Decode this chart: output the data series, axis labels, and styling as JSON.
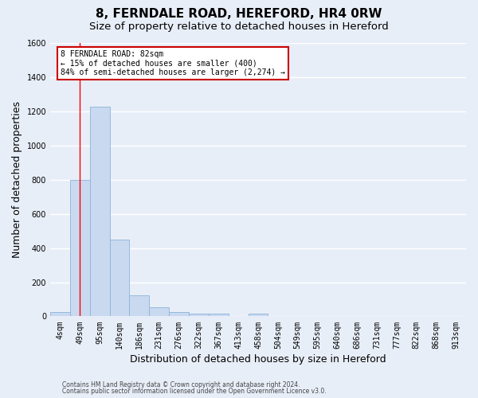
{
  "title1": "8, FERNDALE ROAD, HEREFORD, HR4 0RW",
  "title2": "Size of property relative to detached houses in Hereford",
  "xlabel": "Distribution of detached houses by size in Hereford",
  "ylabel": "Number of detached properties",
  "bar_labels": [
    "4sqm",
    "49sqm",
    "95sqm",
    "140sqm",
    "186sqm",
    "231sqm",
    "276sqm",
    "322sqm",
    "367sqm",
    "413sqm",
    "458sqm",
    "504sqm",
    "549sqm",
    "595sqm",
    "640sqm",
    "686sqm",
    "731sqm",
    "777sqm",
    "822sqm",
    "868sqm",
    "913sqm"
  ],
  "bar_values": [
    25,
    800,
    1225,
    450,
    125,
    55,
    25,
    15,
    15,
    0,
    15,
    0,
    0,
    0,
    0,
    0,
    0,
    0,
    0,
    0,
    0
  ],
  "bar_color": "#c9d9f0",
  "bar_edge_color": "#8ab4d8",
  "background_color": "#e8eef8",
  "grid_color": "#ffffff",
  "red_line_x": 1.0,
  "annotation_text": "8 FERNDALE ROAD: 82sqm\n← 15% of detached houses are smaller (400)\n84% of semi-detached houses are larger (2,274) →",
  "annotation_box_color": "#ffffff",
  "annotation_box_edge_color": "#cc0000",
  "ylim": [
    0,
    1600
  ],
  "yticks": [
    0,
    200,
    400,
    600,
    800,
    1000,
    1200,
    1400,
    1600
  ],
  "footer1": "Contains HM Land Registry data © Crown copyright and database right 2024.",
  "footer2": "Contains public sector information licensed under the Open Government Licence v3.0.",
  "title_fontsize": 11,
  "subtitle_fontsize": 9.5,
  "tick_fontsize": 7,
  "ylabel_fontsize": 9,
  "xlabel_fontsize": 9,
  "annotation_fontsize": 7,
  "footer_fontsize": 5.5
}
